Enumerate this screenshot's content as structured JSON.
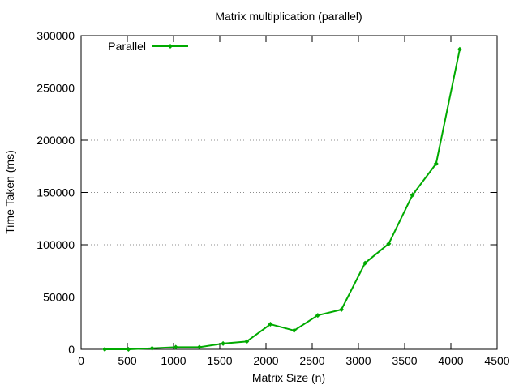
{
  "chart_data": {
    "type": "line",
    "title": "Matrix multiplication (parallel)",
    "xlabel": "Matrix Size (n)",
    "ylabel": "Time Taken (ms)",
    "xlim": [
      0,
      4500
    ],
    "ylim": [
      0,
      300000
    ],
    "xticks": [
      0,
      500,
      1000,
      1500,
      2000,
      2500,
      3000,
      3500,
      4000,
      4500
    ],
    "yticks": [
      0,
      50000,
      100000,
      150000,
      200000,
      250000,
      300000
    ],
    "grid": "horizontal dotted",
    "legend_position": "top-left",
    "series": [
      {
        "name": "Parallel",
        "color": "#00aa00",
        "marker": "diamond",
        "x": [
          256,
          512,
          768,
          1024,
          1280,
          1536,
          1792,
          2048,
          2304,
          2560,
          2816,
          3072,
          3328,
          3584,
          3840,
          4096
        ],
        "y": [
          0,
          0,
          1000,
          2000,
          2000,
          5500,
          7500,
          24000,
          18000,
          32500,
          38000,
          82500,
          101000,
          147500,
          177500,
          287000
        ]
      }
    ]
  }
}
